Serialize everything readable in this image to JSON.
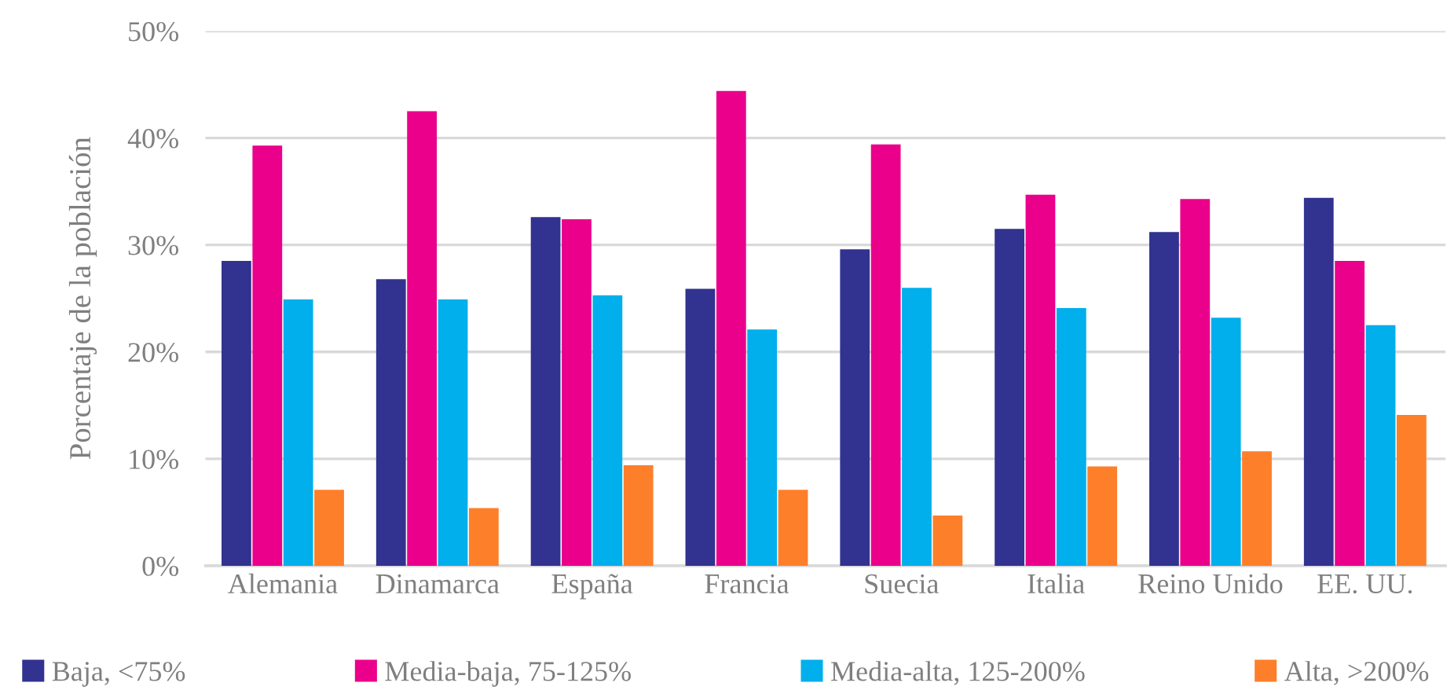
{
  "chart_data": {
    "type": "bar",
    "ylabel": "Porcentaje de la población",
    "categories": [
      "Alemania",
      "Dinamarca",
      "España",
      "Francia",
      "Suecia",
      "Italia",
      "Reino Unido",
      "EE. UU."
    ],
    "series": [
      {
        "name": "Baja, <75%",
        "color": "#323290",
        "values": [
          28.5,
          26.8,
          32.6,
          25.9,
          29.6,
          31.5,
          31.2,
          34.4
        ]
      },
      {
        "name": "Media-baja, 75-125%",
        "color": "#ea008b",
        "values": [
          39.3,
          42.5,
          32.4,
          44.4,
          39.4,
          34.7,
          34.3,
          28.5
        ]
      },
      {
        "name": "Media-alta, 125-200%",
        "color": "#00afec",
        "values": [
          24.9,
          24.9,
          25.3,
          22.1,
          26.0,
          24.1,
          23.2,
          22.5
        ]
      },
      {
        "name": "Alta, >200%",
        "color": "#fe7f2a",
        "values": [
          7.1,
          5.4,
          9.4,
          7.1,
          4.7,
          9.3,
          10.7,
          14.1
        ]
      }
    ],
    "ylim": [
      0,
      50
    ],
    "yticks": [
      {
        "value": 0,
        "label": "0%"
      },
      {
        "value": 10,
        "label": "10%"
      },
      {
        "value": 20,
        "label": "20%"
      },
      {
        "value": 30,
        "label": "30%"
      },
      {
        "value": 40,
        "label": "40%"
      },
      {
        "value": 50,
        "label": "50%"
      }
    ],
    "grid": "y",
    "legend": "bottom"
  }
}
